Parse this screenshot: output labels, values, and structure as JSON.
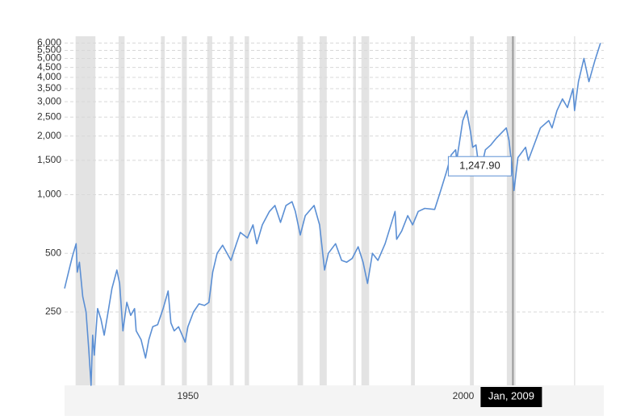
{
  "chart_data": {
    "type": "line",
    "color": "#5b8fd4",
    "log_scale": true,
    "grid": true,
    "xlim": [
      1927.6,
      2025.5
    ],
    "ylim": [
      105,
      6500
    ],
    "xticks": [
      1950,
      2000
    ],
    "yticks": [
      250,
      500,
      {
        "value": 1000,
        "label": "1,000"
      },
      {
        "value": 1500,
        "label": "1,500"
      },
      {
        "value": 2000,
        "label": "2,000"
      },
      {
        "value": 2500,
        "label": "2,500"
      },
      {
        "value": 3000,
        "label": "3,000"
      },
      {
        "value": 3500,
        "label": "3,500"
      },
      {
        "value": 4000,
        "label": "4,000"
      },
      {
        "value": 4500,
        "label": "4,500"
      },
      {
        "value": 5000,
        "label": "5,000"
      },
      {
        "value": 5500,
        "label": "5,500"
      },
      {
        "value": 6000,
        "label": "6,000"
      }
    ],
    "recessions": [
      [
        1929.6,
        1933.2
      ],
      [
        1937.4,
        1938.5
      ],
      [
        1945.1,
        1945.8
      ],
      [
        1948.9,
        1949.8
      ],
      [
        1953.5,
        1954.4
      ],
      [
        1957.6,
        1958.3
      ],
      [
        1960.3,
        1961.1
      ],
      [
        1969.9,
        1970.9
      ],
      [
        1973.9,
        1975.2
      ],
      [
        1980.0,
        1980.5
      ],
      [
        1981.5,
        1982.9
      ],
      [
        1990.5,
        1991.2
      ],
      [
        2001.2,
        2001.9
      ],
      [
        2007.9,
        2009.5
      ],
      [
        2020.1,
        2020.3
      ]
    ],
    "x": [
      1927.6,
      1928.5,
      1929.0,
      1929.7,
      1929.9,
      1930.3,
      1930.9,
      1931.5,
      1932.0,
      1932.4,
      1932.7,
      1933.0,
      1933.6,
      1934.2,
      1934.8,
      1935.5,
      1936.2,
      1937.1,
      1937.6,
      1938.2,
      1938.9,
      1939.6,
      1940.3,
      1940.6,
      1941.5,
      1942.3,
      1942.9,
      1943.6,
      1944.5,
      1945.5,
      1946.4,
      1946.9,
      1947.5,
      1948.3,
      1949.5,
      1950.0,
      1951.0,
      1952.0,
      1953.0,
      1953.8,
      1954.5,
      1955.3,
      1956.3,
      1957.8,
      1958.8,
      1959.5,
      1960.8,
      1961.8,
      1962.5,
      1963.5,
      1964.8,
      1965.8,
      1966.8,
      1967.8,
      1968.9,
      1969.5,
      1970.4,
      1971.3,
      1972.9,
      1973.9,
      1974.8,
      1975.5,
      1976.8,
      1977.9,
      1978.8,
      1979.8,
      1980.9,
      1981.8,
      1982.6,
      1983.5,
      1984.5,
      1985.8,
      1987.6,
      1987.9,
      1988.8,
      1989.9,
      1990.8,
      1991.8,
      1993.0,
      1994.8,
      1995.9,
      1996.9,
      1997.8,
      1998.6,
      1998.8,
      1999.9,
      2000.6,
      2001.3,
      2001.7,
      2002.3,
      2002.8,
      2003.2,
      2004.0,
      2005.0,
      2006.0,
      2007.8,
      2008.3,
      2008.8,
      2009.0,
      2009.2,
      2009.9,
      2011.3,
      2011.8,
      2013.0,
      2014.0,
      2015.5,
      2016.1,
      2017.0,
      2018.0,
      2018.9,
      2019.9,
      2020.2,
      2020.9,
      2021.9,
      2022.8,
      2023.9,
      2024.9
    ],
    "values": [
      330,
      420,
      480,
      560,
      400,
      450,
      300,
      250,
      160,
      105,
      190,
      150,
      260,
      230,
      190,
      250,
      330,
      410,
      350,
      200,
      280,
      240,
      260,
      200,
      180,
      145,
      180,
      210,
      215,
      260,
      320,
      220,
      200,
      210,
      175,
      210,
      250,
      275,
      270,
      280,
      400,
      500,
      550,
      460,
      560,
      640,
      600,
      700,
      560,
      700,
      820,
      880,
      720,
      880,
      920,
      820,
      620,
      780,
      880,
      700,
      410,
      500,
      560,
      460,
      450,
      470,
      540,
      450,
      350,
      500,
      460,
      560,
      820,
      590,
      650,
      780,
      700,
      820,
      850,
      840,
      1050,
      1300,
      1600,
      1700,
      1500,
      2400,
      2700,
      2100,
      1750,
      1800,
      1400,
      1350,
      1700,
      1800,
      1950,
      2200,
      1900,
      1400,
      1247.9,
      1050,
      1550,
      1750,
      1500,
      1850,
      2200,
      2400,
      2200,
      2700,
      3100,
      2800,
      3500,
      2700,
      3800,
      5000,
      3800,
      4900,
      6000
    ],
    "tooltip": {
      "x": 2009.0,
      "value": 1247.9,
      "label": "1,247.90",
      "x_label": "Jan, 2009"
    }
  }
}
